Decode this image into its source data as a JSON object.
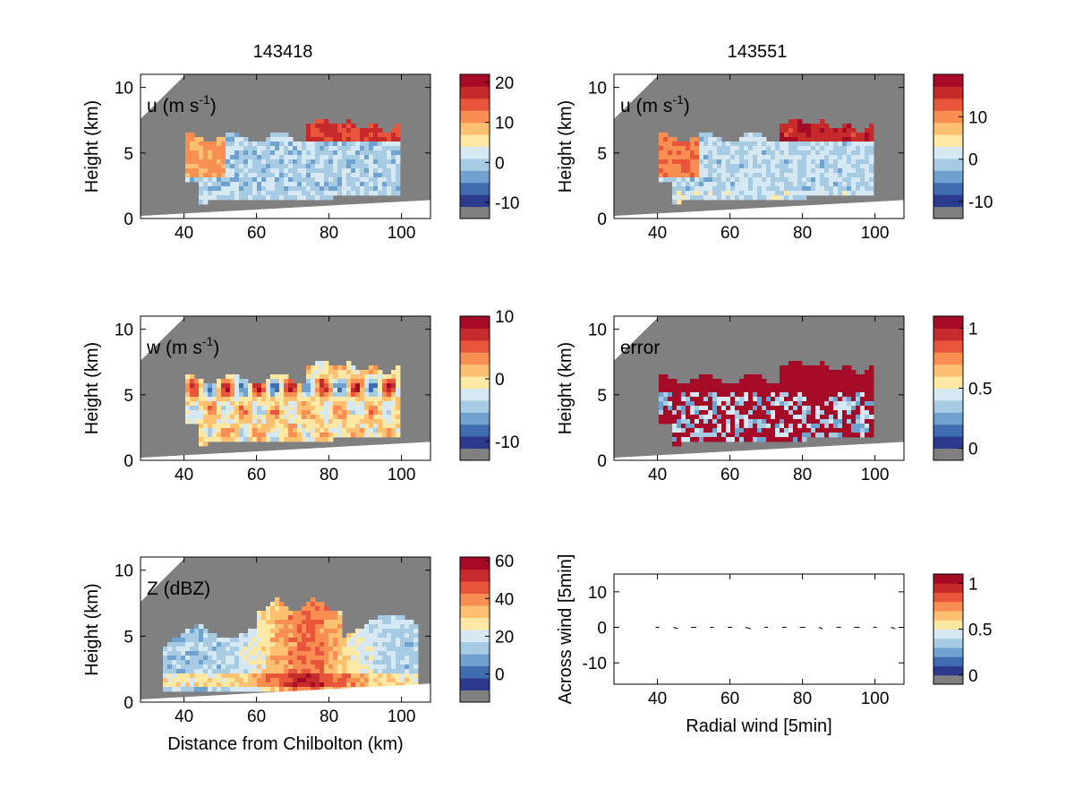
{
  "titles": [
    "143418",
    "143551"
  ],
  "colors": {
    "background_gray": "#808080",
    "palette": [
      "#808080",
      "#2c3a8e",
      "#3f6db0",
      "#6fa2cf",
      "#a6cbe3",
      "#d6e9f2",
      "#fde9a4",
      "#fdbf70",
      "#f98e52",
      "#e9553b",
      "#c62a2a",
      "#a50b26"
    ]
  },
  "chart_data": [
    {
      "type": "heatmap",
      "panel": "u-143418",
      "label": "u (m s-1)",
      "label_main": "u (m s",
      "label_sup": "-1",
      "label_tail": ")",
      "ylabel": "Height (km)",
      "xlabel": "",
      "xlim": [
        28,
        108
      ],
      "ylim": [
        0,
        11
      ],
      "xticks": [
        40,
        60,
        80,
        100
      ],
      "yticks": [
        0,
        5,
        10
      ],
      "colorbar": {
        "ticks": [
          "20",
          "10",
          "0",
          "-10"
        ],
        "tick_values": [
          20,
          10,
          0,
          -10
        ],
        "vmin": -14,
        "vmax": 22
      }
    },
    {
      "type": "heatmap",
      "panel": "u-143551",
      "label": "u (m s-1)",
      "label_main": "u (m s",
      "label_sup": "-1",
      "label_tail": ")",
      "ylabel": "Height (km)",
      "xlabel": "",
      "xlim": [
        28,
        108
      ],
      "ylim": [
        0,
        11
      ],
      "xticks": [
        40,
        60,
        80,
        100
      ],
      "yticks": [
        0,
        5,
        10
      ],
      "colorbar": {
        "ticks": [
          "10",
          "0",
          "-10"
        ],
        "tick_values": [
          10,
          0,
          -10
        ],
        "vmin": -14,
        "vmax": 20
      }
    },
    {
      "type": "heatmap",
      "panel": "w",
      "label": "w (m s-1)",
      "label_main": "w (m s",
      "label_sup": "-1",
      "label_tail": ")",
      "ylabel": "Height (km)",
      "xlabel": "",
      "xlim": [
        28,
        108
      ],
      "ylim": [
        0,
        11
      ],
      "xticks": [
        40,
        60,
        80,
        100
      ],
      "yticks": [
        0,
        5,
        10
      ],
      "colorbar": {
        "ticks": [
          "10",
          "0",
          "-10"
        ],
        "tick_values": [
          10,
          0,
          -10
        ],
        "vmin": -13,
        "vmax": 10
      }
    },
    {
      "type": "heatmap",
      "panel": "error",
      "label": "error",
      "label_main": "error",
      "label_sup": "",
      "label_tail": "",
      "ylabel": "Height (km)",
      "xlabel": "",
      "xlim": [
        28,
        108
      ],
      "ylim": [
        0,
        11
      ],
      "xticks": [
        40,
        60,
        80,
        100
      ],
      "yticks": [
        0,
        5,
        10
      ],
      "colorbar": {
        "ticks": [
          "1",
          "0.5",
          "0"
        ],
        "tick_values": [
          1,
          0.5,
          0
        ],
        "vmin": -0.1,
        "vmax": 1.1
      }
    },
    {
      "type": "heatmap",
      "panel": "Z",
      "label": "Z (dBZ)",
      "label_main": "Z (dBZ)",
      "label_sup": "",
      "label_tail": "",
      "ylabel": "Height (km)",
      "xlabel": "Distance from Chilbolton (km)",
      "xlim": [
        28,
        108
      ],
      "ylim": [
        0,
        11
      ],
      "xticks": [
        40,
        60,
        80,
        100
      ],
      "yticks": [
        0,
        5,
        10
      ],
      "colorbar": {
        "ticks": [
          "60",
          "40",
          "20",
          "0"
        ],
        "tick_values": [
          60,
          40,
          20,
          0
        ],
        "vmin": -15,
        "vmax": 62
      }
    },
    {
      "type": "scatter",
      "panel": "wind",
      "label": "",
      "ylabel": "Across wind [5min]",
      "xlabel": "Radial wind [5min]",
      "xlim": [
        28,
        108
      ],
      "ylim": [
        -16,
        15
      ],
      "xticks": [
        40,
        60,
        80,
        100
      ],
      "yticks": [
        -10,
        0,
        10
      ],
      "arrows_x": [
        40,
        45,
        50,
        55,
        60,
        65,
        70,
        75,
        80,
        85,
        90,
        95,
        100,
        105
      ],
      "arrows_y": [
        0,
        0,
        0,
        0,
        0,
        0,
        0,
        0,
        0,
        0,
        0,
        0,
        0,
        0
      ],
      "colorbar": {
        "ticks": [
          "1",
          "0.5",
          "0"
        ],
        "tick_values": [
          1,
          0.5,
          0
        ],
        "vmin": -0.1,
        "vmax": 1.1
      }
    }
  ]
}
